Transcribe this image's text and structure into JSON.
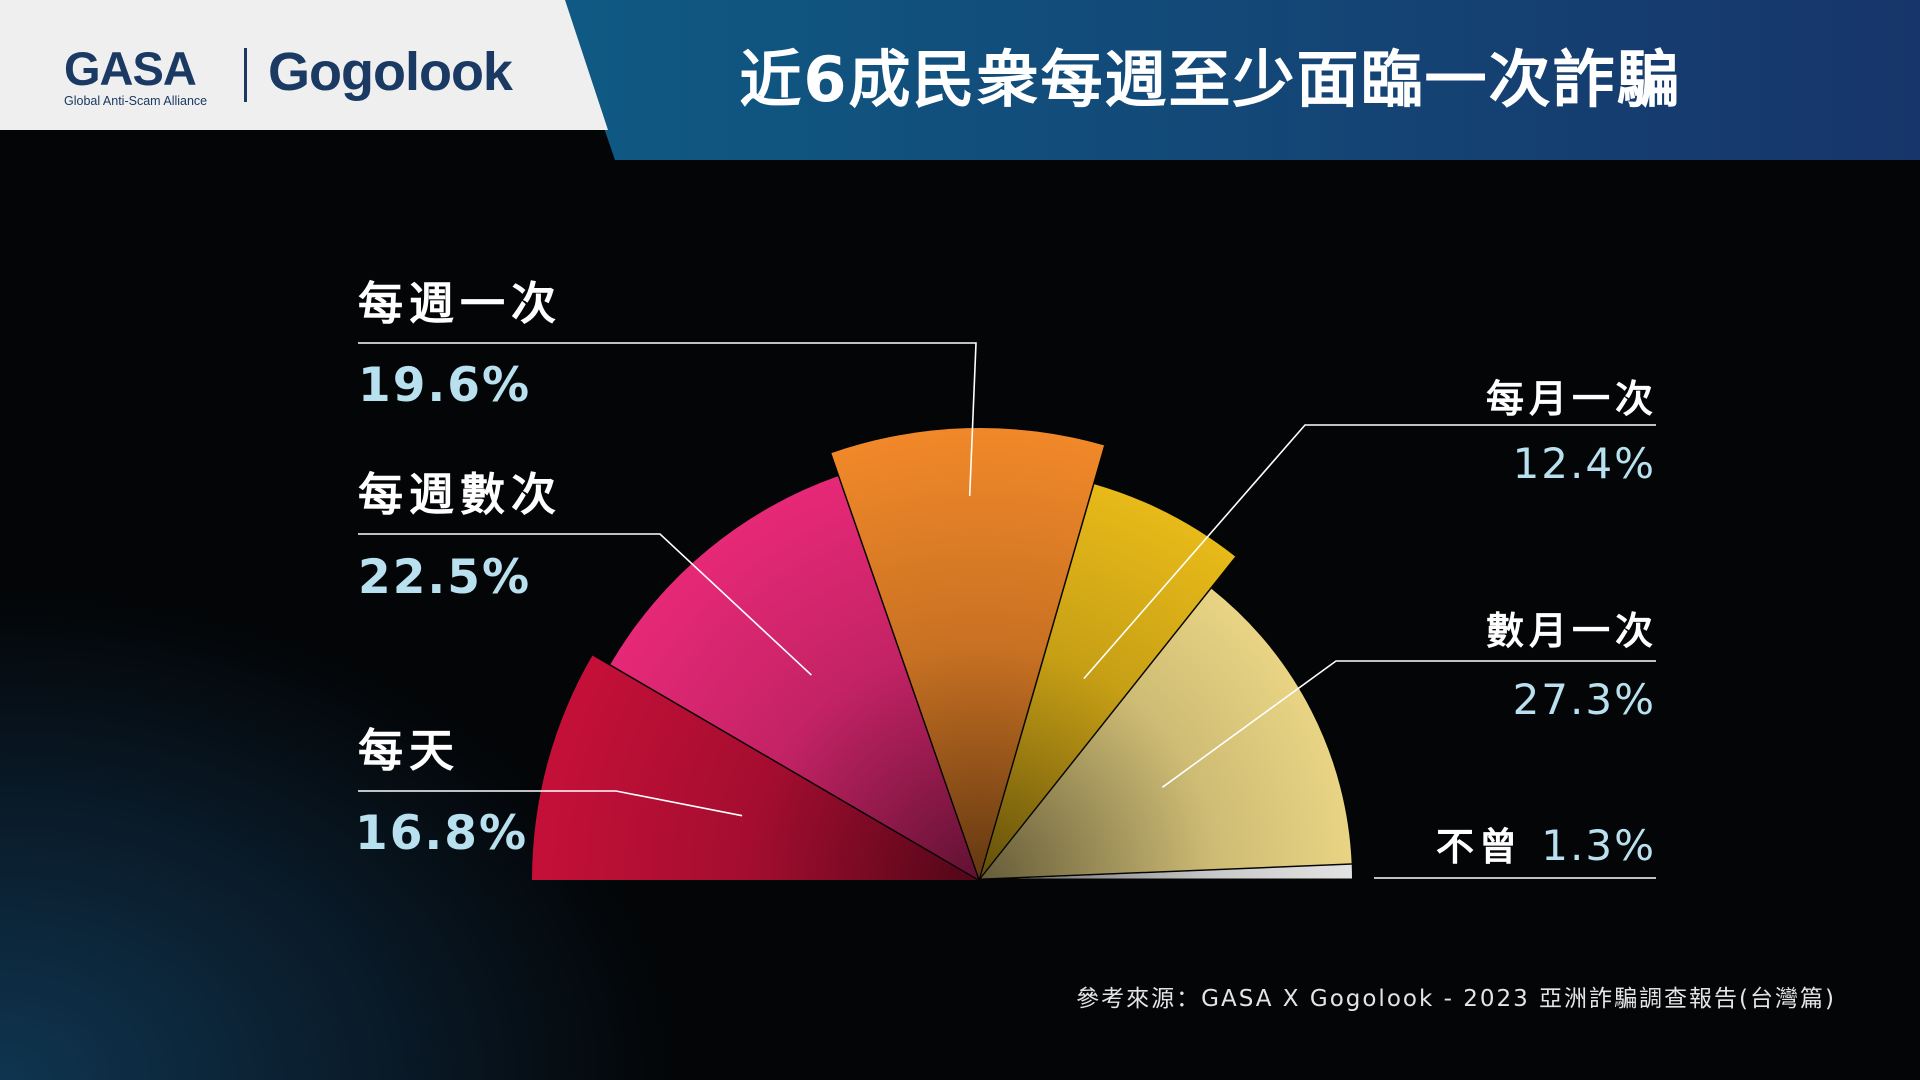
{
  "header": {
    "gasa_logo_text": "GASA",
    "gasa_logo_sub": "Global Anti-Scam Alliance",
    "gogolook_logo_text": "Gogolook",
    "title": "近6成民衆每週至少面臨一次詐騙"
  },
  "colors": {
    "header_left_bg": "#efefef",
    "header_right_bg": "#15476f",
    "logo_navy": "#1b3a63",
    "value_text": "#b8e0ef"
  },
  "chart_data": {
    "type": "pie",
    "layout": "semicircle",
    "slices": [
      {
        "category": "每天",
        "value": 16.8,
        "label": "16.8%",
        "color": "#c8103a"
      },
      {
        "category": "每週數次",
        "value": 22.5,
        "label": "22.5%",
        "color": "#ee2a7b"
      },
      {
        "category": "每週一次",
        "value": 19.6,
        "label": "19.6%",
        "color": "#f48a2a"
      },
      {
        "category": "每月一次",
        "value": 12.4,
        "label": "12.4%",
        "color": "#f2c21a"
      },
      {
        "category": "數月一次",
        "value": 27.3,
        "label": "27.3%",
        "color": "#fbe58e"
      },
      {
        "category": "不曾",
        "value": 1.3,
        "label": "1.3%",
        "color": "#f5f5f5"
      }
    ]
  },
  "source": "參考來源：GASA X Gogolook - 2023 亞洲詐騙調查報告(台灣篇)"
}
